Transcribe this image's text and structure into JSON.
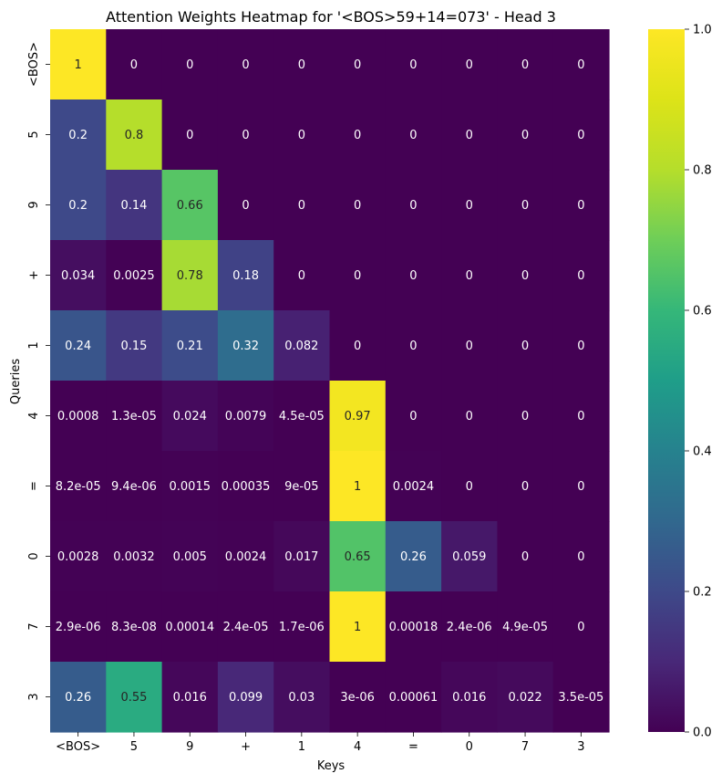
{
  "chart_data": {
    "type": "heatmap",
    "title": "Attention Weights Heatmap for '<BOS>59+14=073' - Head 3",
    "xlabel": "Keys",
    "ylabel": "Queries",
    "x_labels": [
      "<BOS>",
      "5",
      "9",
      "+",
      "1",
      "4",
      "=",
      "0",
      "7",
      "3"
    ],
    "y_labels": [
      "<BOS>",
      "5",
      "9",
      "+",
      "1",
      "4",
      "=",
      "0",
      "7",
      "3"
    ],
    "values": [
      [
        1,
        0,
        0,
        0,
        0,
        0,
        0,
        0,
        0,
        0
      ],
      [
        0.2,
        0.8,
        0,
        0,
        0,
        0,
        0,
        0,
        0,
        0
      ],
      [
        0.2,
        0.14,
        0.66,
        0,
        0,
        0,
        0,
        0,
        0,
        0
      ],
      [
        0.034,
        0.0025,
        0.78,
        0.18,
        0,
        0,
        0,
        0,
        0,
        0
      ],
      [
        0.24,
        0.15,
        0.21,
        0.32,
        0.082,
        0,
        0,
        0,
        0,
        0
      ],
      [
        0.0008,
        1.3e-05,
        0.024,
        0.0079,
        4.5e-05,
        0.97,
        0,
        0,
        0,
        0
      ],
      [
        8.2e-05,
        9.4e-06,
        0.0015,
        0.00035,
        9e-05,
        1,
        0.0024,
        0,
        0,
        0
      ],
      [
        0.0028,
        0.0032,
        0.005,
        0.0024,
        0.017,
        0.65,
        0.26,
        0.059,
        0,
        0
      ],
      [
        2.9e-06,
        8.3e-08,
        0.00014,
        2.4e-05,
        1.7e-06,
        1,
        0.00018,
        2.4e-06,
        4.9e-05,
        0
      ],
      [
        0.26,
        0.55,
        0.016,
        0.099,
        0.03,
        3e-06,
        0.00061,
        0.016,
        0.022,
        3.5e-05
      ]
    ],
    "annotations": [
      [
        "1",
        "0",
        "0",
        "0",
        "0",
        "0",
        "0",
        "0",
        "0",
        "0"
      ],
      [
        "0.2",
        "0.8",
        "0",
        "0",
        "0",
        "0",
        "0",
        "0",
        "0",
        "0"
      ],
      [
        "0.2",
        "0.14",
        "0.66",
        "0",
        "0",
        "0",
        "0",
        "0",
        "0",
        "0"
      ],
      [
        "0.034",
        "0.0025",
        "0.78",
        "0.18",
        "0",
        "0",
        "0",
        "0",
        "0",
        "0"
      ],
      [
        "0.24",
        "0.15",
        "0.21",
        "0.32",
        "0.082",
        "0",
        "0",
        "0",
        "0",
        "0"
      ],
      [
        "0.0008",
        "1.3e-05",
        "0.024",
        "0.0079",
        "4.5e-05",
        "0.97",
        "0",
        "0",
        "0",
        "0"
      ],
      [
        "8.2e-05",
        "9.4e-06",
        "0.0015",
        "0.00035",
        "9e-05",
        "1",
        "0.0024",
        "0",
        "0",
        "0"
      ],
      [
        "0.0028",
        "0.0032",
        "0.005",
        "0.0024",
        "0.017",
        "0.65",
        "0.26",
        "0.059",
        "0",
        "0"
      ],
      [
        "2.9e-06",
        "8.3e-08",
        "0.00014",
        "2.4e-05",
        "1.7e-06",
        "1",
        "0.00018",
        "2.4e-06",
        "4.9e-05",
        "0"
      ],
      [
        "0.26",
        "0.55",
        "0.016",
        "0.099",
        "0.03",
        "3e-06",
        "0.00061",
        "0.016",
        "0.022",
        "3.5e-05"
      ]
    ],
    "colormap": "viridis",
    "vmin": 0,
    "vmax": 1,
    "colorbar_ticks": [
      "0.0",
      "0.2",
      "0.4",
      "0.6",
      "0.8",
      "1.0"
    ],
    "colorbar_tick_values": [
      0,
      0.2,
      0.4,
      0.6,
      0.8,
      1.0
    ],
    "grid": false
  }
}
